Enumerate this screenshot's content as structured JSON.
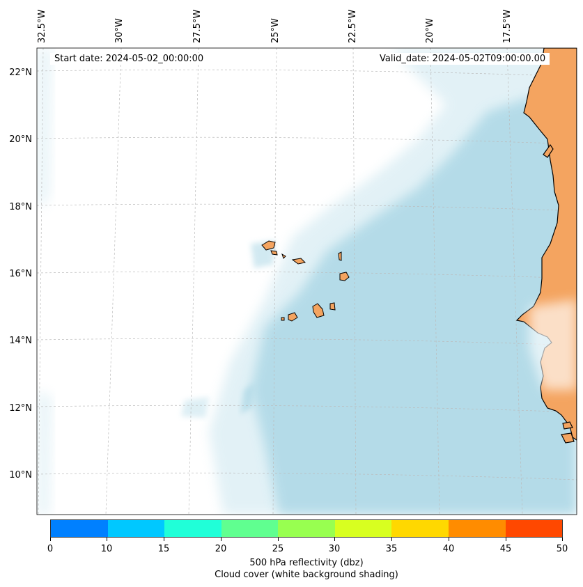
{
  "map": {
    "lon_labels": [
      "32.5°W",
      "30°W",
      "27.5°W",
      "25°W",
      "22.5°W",
      "20°W",
      "17.5°W"
    ],
    "lat_labels": [
      "22°N",
      "20°N",
      "18°N",
      "16°N",
      "14°N",
      "12°N",
      "10°N"
    ],
    "start_date": "Start date: 2024-05-02_00:00:00",
    "valid_date": "Valid_date: 2024-05-02T09:00:00.00",
    "land_color": "#f4a460",
    "cloud_color": "#add8e6",
    "ocean_color": "#ffffff"
  },
  "colorbar": {
    "ticks": [
      "0",
      "10",
      "15",
      "20",
      "25",
      "30",
      "35",
      "40",
      "45",
      "50"
    ],
    "colors": [
      "#0080ff",
      "#00c8ff",
      "#20ffd8",
      "#60ff90",
      "#98ff50",
      "#d8ff20",
      "#ffd800",
      "#ff8c00",
      "#ff4800"
    ],
    "label": "500 hPa reflectivity (dbz)",
    "sublabel": "Cloud cover (white background shading)"
  }
}
